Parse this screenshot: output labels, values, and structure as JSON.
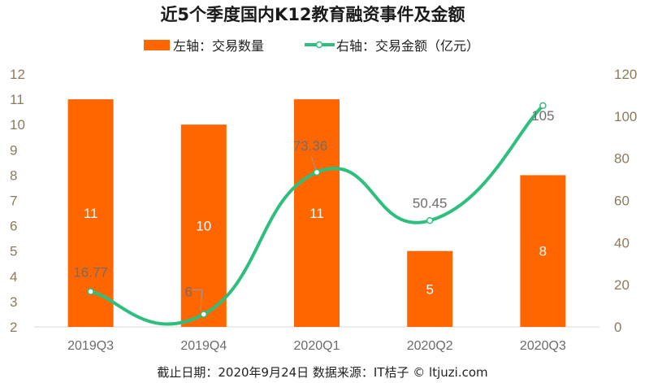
{
  "chart_data": {
    "type": "bar",
    "title": "近5个季度国内K12教育融资事件及金额",
    "categories": [
      "2019Q3",
      "2019Q4",
      "2020Q1",
      "2020Q2",
      "2020Q3"
    ],
    "series": [
      {
        "name": "左轴：交易数量",
        "type": "bar",
        "axis": "left",
        "values": [
          11,
          10,
          11,
          5,
          8
        ],
        "color": "#ff6600"
      },
      {
        "name": "右轴：交易金额（亿元）",
        "type": "line",
        "axis": "right",
        "values": [
          16.77,
          6,
          73.36,
          50.45,
          105
        ],
        "color": "#2dbf7e"
      }
    ],
    "y_left": {
      "min": 2,
      "max": 12,
      "ticks": [
        "2",
        "3",
        "4",
        "5",
        "6",
        "7",
        "8",
        "9",
        "10",
        "11",
        "12"
      ]
    },
    "y_right": {
      "min": 0,
      "max": 120,
      "ticks": [
        "0",
        "20",
        "40",
        "60",
        "80",
        "100",
        "120"
      ]
    },
    "bar_labels": [
      "11",
      "10",
      "11",
      "5",
      "8"
    ],
    "line_labels": [
      "16.77",
      "6",
      "73.36",
      "50.45",
      "105"
    ],
    "legend_position": "top",
    "grid": false
  },
  "footer": "截止日期：2020年9月24日      数据来源：IT桔子 © ltjuzi.com"
}
